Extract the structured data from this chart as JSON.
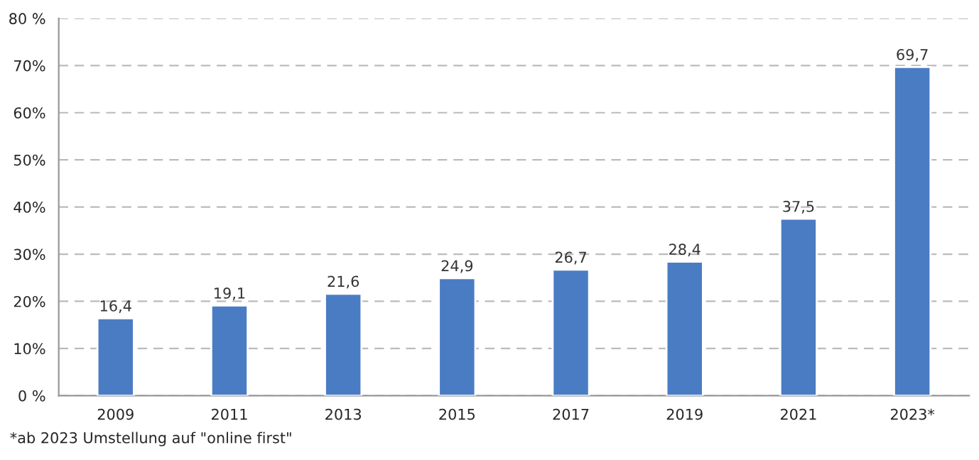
{
  "chart_data": {
    "type": "bar",
    "categories": [
      "2009",
      "2011",
      "2013",
      "2015",
      "2017",
      "2019",
      "2021",
      "2023*"
    ],
    "values": [
      16.4,
      19.1,
      21.6,
      24.9,
      26.7,
      28.4,
      37.5,
      69.7
    ],
    "value_labels": [
      "16,4",
      "19,1",
      "21,6",
      "24,9",
      "26,7",
      "28,4",
      "37,5",
      "69,7"
    ],
    "color": "#4a7cc4",
    "ylim": [
      0,
      80
    ],
    "yticks": [
      {
        "value": 0,
        "label": "0 %"
      },
      {
        "value": 10,
        "label": "10%"
      },
      {
        "value": 20,
        "label": "20%"
      },
      {
        "value": 30,
        "label": "30%"
      },
      {
        "value": 40,
        "label": "40%"
      },
      {
        "value": 50,
        "label": "50%"
      },
      {
        "value": 60,
        "label": "60%"
      },
      {
        "value": 70,
        "label": "70%"
      },
      {
        "value": 80,
        "label": "80 %"
      }
    ],
    "grid": "y",
    "annotations": [
      "*ab 2023 Umstellung auf \"online first\""
    ]
  }
}
